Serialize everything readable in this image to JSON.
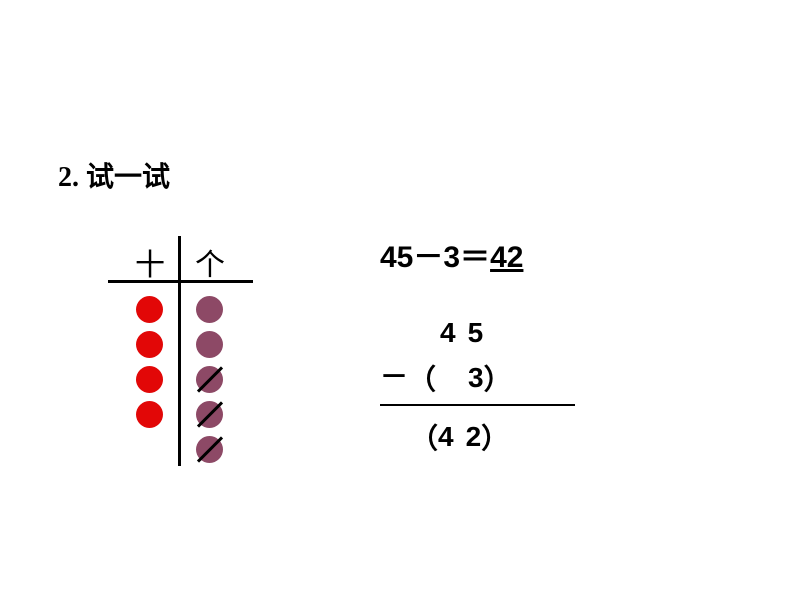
{
  "title": "2. 试一试",
  "placeValue": {
    "tensHeader": "十",
    "onesHeader": "个",
    "tensColor": "#e20707",
    "onesColor": "#8d4966",
    "tensDots": [
      {
        "crossed": false
      },
      {
        "crossed": false
      },
      {
        "crossed": false
      },
      {
        "crossed": false
      }
    ],
    "onesDots": [
      {
        "crossed": false
      },
      {
        "crossed": false
      },
      {
        "crossed": true
      },
      {
        "crossed": true
      },
      {
        "crossed": true
      }
    ]
  },
  "equation": {
    "lhs": "45－3＝",
    "answer": "42"
  },
  "vertical": {
    "minuend": {
      "tens": "4",
      "ones": "5"
    },
    "subtrahend": {
      "tens": "",
      "ones": "3"
    },
    "result": {
      "tens": "4",
      "ones": "2"
    },
    "minusSign": "－",
    "openParen": "（",
    "closeParen": "）"
  }
}
